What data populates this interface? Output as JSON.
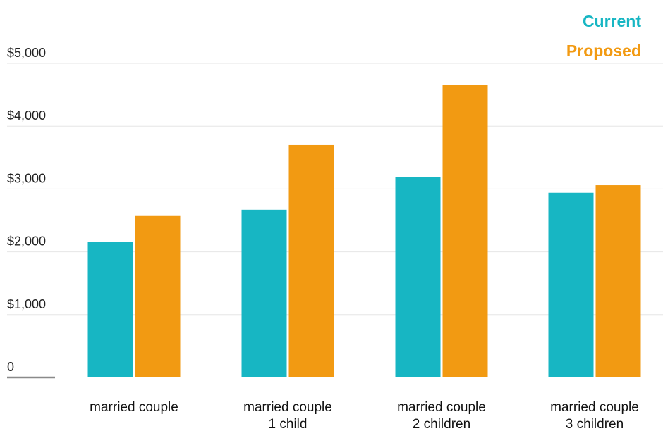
{
  "chart_data": {
    "type": "bar",
    "categories": [
      [
        "married couple"
      ],
      [
        "married couple",
        "1 child"
      ],
      [
        "married couple",
        "2 children"
      ],
      [
        "married couple",
        "3 children"
      ]
    ],
    "series": [
      {
        "name": "Current",
        "color": "#17b6c3",
        "values": [
          2160,
          2670,
          3190,
          2940
        ]
      },
      {
        "name": "Proposed",
        "color": "#f29a12",
        "values": [
          2570,
          3700,
          4660,
          3060
        ]
      }
    ],
    "y_ticks": [
      {
        "value": 0,
        "label": "0"
      },
      {
        "value": 1000,
        "label": "$1,000"
      },
      {
        "value": 2000,
        "label": "$2,000"
      },
      {
        "value": 3000,
        "label": "$3,000"
      },
      {
        "value": 4000,
        "label": "$4,000"
      },
      {
        "value": 5000,
        "label": "$5,000"
      }
    ],
    "ylim": [
      0,
      5000
    ],
    "grid": true,
    "legend_position": "top-right",
    "title": "",
    "xlabel": "",
    "ylabel": ""
  }
}
